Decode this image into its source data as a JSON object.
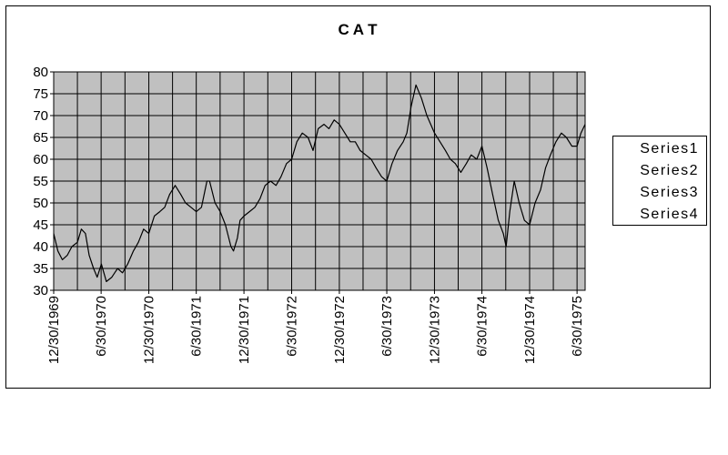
{
  "chart_data": {
    "type": "line",
    "title": "C A T",
    "xlabel": "",
    "ylabel": "",
    "ylim": [
      30,
      80
    ],
    "yticks": [
      30,
      35,
      40,
      45,
      50,
      55,
      60,
      65,
      70,
      75,
      80
    ],
    "xlim": [
      "1969-12-30",
      "1975-07-31"
    ],
    "xticks": [
      {
        "label": "12/30/1969",
        "date": "1969-12-30"
      },
      {
        "label": "6/30/1970",
        "date": "1970-06-30"
      },
      {
        "label": "12/30/1970",
        "date": "1970-12-30"
      },
      {
        "label": "6/30/1971",
        "date": "1971-06-30"
      },
      {
        "label": "12/30/1971",
        "date": "1971-12-30"
      },
      {
        "label": "6/30/1972",
        "date": "1972-06-30"
      },
      {
        "label": "12/30/1972",
        "date": "1972-12-30"
      },
      {
        "label": "6/30/1973",
        "date": "1973-06-30"
      },
      {
        "label": "12/30/1973",
        "date": "1973-12-30"
      },
      {
        "label": "6/30/1974",
        "date": "1974-06-30"
      },
      {
        "label": "12/30/1974",
        "date": "1974-12-30"
      },
      {
        "label": "6/30/1975",
        "date": "1975-06-30"
      }
    ],
    "grid": true,
    "legend_position": "right",
    "series": [
      {
        "name": "Series1",
        "x": [
          "1969-12-30",
          "1970-01-15",
          "1970-02-01",
          "1970-02-20",
          "1970-03-10",
          "1970-03-31",
          "1970-04-15",
          "1970-05-01",
          "1970-05-15",
          "1970-06-01",
          "1970-06-15",
          "1970-07-01",
          "1970-07-20",
          "1970-08-10",
          "1970-09-01",
          "1970-09-20",
          "1970-10-10",
          "1970-11-01",
          "1970-11-20",
          "1970-12-10",
          "1970-12-30",
          "1971-01-20",
          "1971-02-10",
          "1971-03-01",
          "1971-03-20",
          "1971-04-10",
          "1971-05-01",
          "1971-05-20",
          "1971-06-10",
          "1971-06-30",
          "1971-07-20",
          "1971-08-10",
          "1971-08-20",
          "1971-09-10",
          "1971-09-30",
          "1971-10-20",
          "1971-11-10",
          "1971-11-20",
          "1971-12-05",
          "1971-12-15",
          "1971-12-30",
          "1972-01-20",
          "1972-02-10",
          "1972-03-01",
          "1972-03-20",
          "1972-04-10",
          "1972-05-01",
          "1972-05-20",
          "1972-06-10",
          "1972-06-30",
          "1972-07-20",
          "1972-08-10",
          "1972-09-01",
          "1972-09-20",
          "1972-10-10",
          "1972-11-01",
          "1972-11-20",
          "1972-12-10",
          "1972-12-30",
          "1973-01-20",
          "1973-02-10",
          "1973-03-01",
          "1973-03-20",
          "1973-04-10",
          "1973-05-01",
          "1973-05-20",
          "1973-06-10",
          "1973-06-30",
          "1973-07-20",
          "1973-08-10",
          "1973-09-01",
          "1973-09-15",
          "1973-10-01",
          "1973-10-20",
          "1973-11-10",
          "1973-12-01",
          "1973-12-30",
          "1974-01-20",
          "1974-02-10",
          "1974-03-01",
          "1974-03-20",
          "1974-04-10",
          "1974-05-01",
          "1974-05-20",
          "1974-06-10",
          "1974-06-30",
          "1974-07-20",
          "1974-08-10",
          "1974-09-01",
          "1974-09-20",
          "1974-10-01",
          "1974-10-15",
          "1974-11-01",
          "1974-11-20",
          "1974-12-10",
          "1974-12-30",
          "1975-01-20",
          "1975-02-10",
          "1975-03-01",
          "1975-03-20",
          "1975-04-10",
          "1975-05-01",
          "1975-05-20",
          "1975-06-10",
          "1975-06-30",
          "1975-07-15",
          "1975-07-31"
        ],
        "values": [
          43,
          39,
          37,
          38,
          40,
          41,
          44,
          43,
          38,
          35,
          33,
          36,
          32,
          33,
          35,
          34,
          36,
          39,
          41,
          44,
          43,
          47,
          48,
          49,
          52,
          54,
          52,
          50,
          49,
          48,
          49,
          55,
          55,
          50,
          48,
          45,
          40,
          39,
          42,
          46,
          47,
          48,
          49,
          51,
          54,
          55,
          54,
          56,
          59,
          60,
          64,
          66,
          65,
          62,
          67,
          68,
          67,
          69,
          68,
          66,
          64,
          64,
          62,
          61,
          60,
          58,
          56,
          55,
          59,
          62,
          64,
          66,
          72,
          77,
          74,
          70,
          66,
          64,
          62,
          60,
          59,
          57,
          59,
          61,
          60,
          63,
          58,
          52,
          46,
          43,
          40,
          48,
          55,
          50,
          46,
          45,
          50,
          53,
          58,
          61,
          64,
          66,
          65,
          63,
          63,
          66,
          68
        ]
      }
    ]
  },
  "legend": {
    "items": [
      "Series1",
      "Series2",
      "Series3",
      "Series4"
    ]
  },
  "colors": {
    "plot_background": "#c0c0c0",
    "line": "#000000",
    "grid": "#000000"
  }
}
